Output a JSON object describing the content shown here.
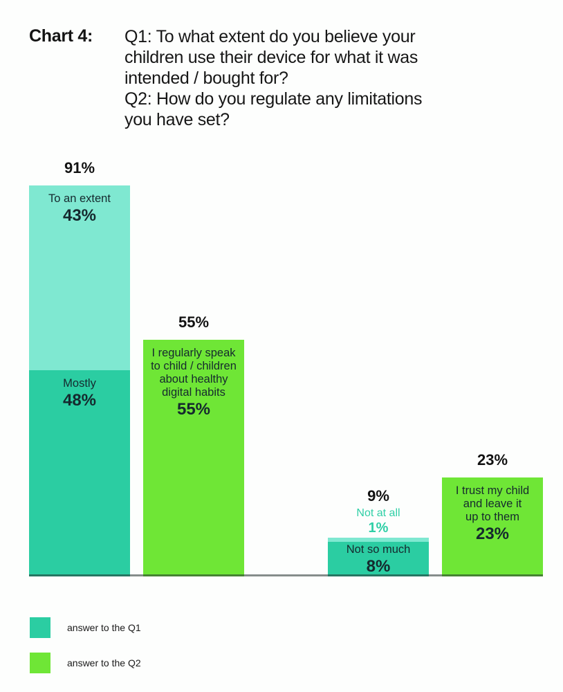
{
  "header": {
    "chart_label": "Chart 4:",
    "question_lines": [
      "Q1: To what extent do you believe your",
      "children use their device for what it was",
      "intended / bought for?",
      "Q2: How do you regulate any limitations",
      "you have set?"
    ]
  },
  "chart_data": {
    "type": "bar",
    "stacked": true,
    "unit": "%",
    "ylim": [
      0,
      100
    ],
    "grid": false,
    "legend_position": "bottom-left",
    "bars": [
      {
        "total": 91,
        "total_label": "91%",
        "segments": [
          {
            "label": "To an extent",
            "lines": [
              "To an extent"
            ],
            "value": 43,
            "value_label": "43%",
            "series": "Q1",
            "shade": "light",
            "label_inside": true
          },
          {
            "label": "Mostly",
            "lines": [
              "Mostly"
            ],
            "value": 48,
            "value_label": "48%",
            "series": "Q1",
            "shade": "dark",
            "label_inside": true
          }
        ]
      },
      {
        "total": 55,
        "total_label": "55%",
        "segments": [
          {
            "label": "I regularly speak to child / children about healthy digital habits",
            "lines": [
              "I regularly speak",
              "to child / children",
              "about healthy",
              "digital habits"
            ],
            "value": 55,
            "value_label": "55%",
            "series": "Q2",
            "shade": "green",
            "label_inside": true
          }
        ]
      },
      {
        "total": 9,
        "total_label": "9%",
        "segments": [
          {
            "label": "Not at all",
            "lines": [
              "Not at all"
            ],
            "value": 1,
            "value_label": "1%",
            "series": "Q1",
            "shade": "light",
            "label_inside": false
          },
          {
            "label": "Not so much",
            "lines": [
              "Not so much"
            ],
            "value": 8,
            "value_label": "8%",
            "series": "Q1",
            "shade": "dark",
            "label_inside": true
          }
        ]
      },
      {
        "total": 23,
        "total_label": "23%",
        "segments": [
          {
            "label": "I trust my child and leave it up to them",
            "lines": [
              "I trust my child",
              "and leave it",
              "up to them"
            ],
            "value": 23,
            "value_label": "23%",
            "series": "Q2",
            "shade": "green",
            "label_inside": true
          }
        ]
      }
    ],
    "legend": [
      {
        "label": "answer to the Q1",
        "color": "#2bcda2"
      },
      {
        "label": "answer to the Q2",
        "color": "#6fe636"
      }
    ]
  },
  "colors": {
    "q1_light": "#7fe8d1",
    "q1_dark": "#2bcda2",
    "q2_green": "#6fe636",
    "teal_text": "#2fcfa6",
    "dark_text": "#15292e",
    "title_text": "#141414",
    "axis_line": "rgba(35,48,45,0.55)"
  }
}
